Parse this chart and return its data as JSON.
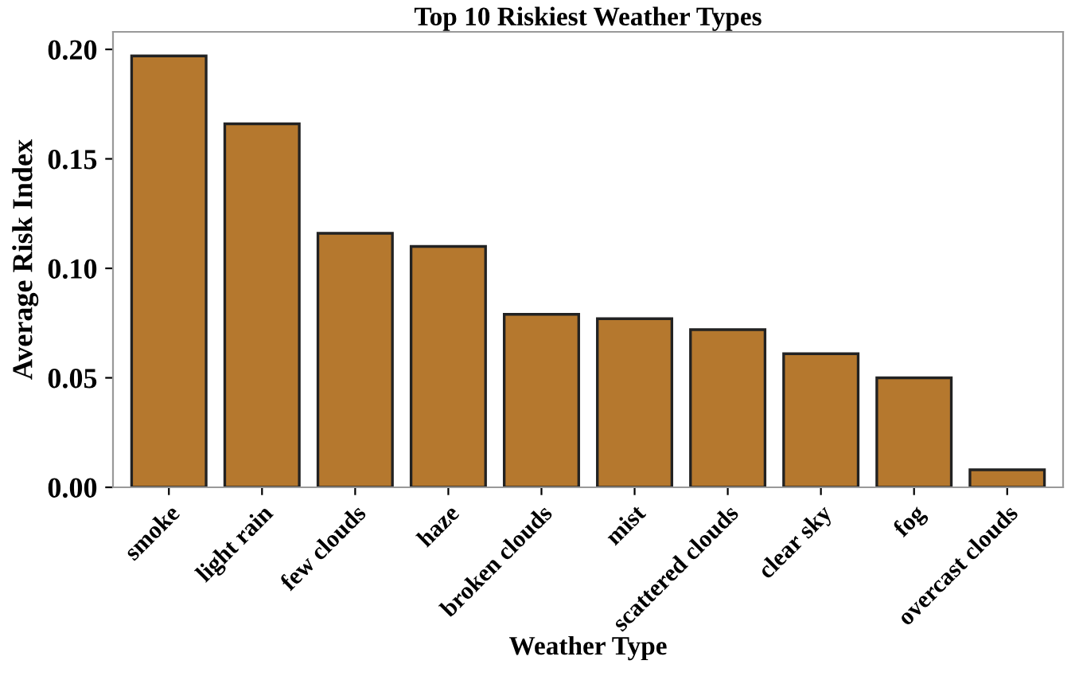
{
  "chart_data": {
    "type": "bar",
    "title": "Top 10 Riskiest Weather Types",
    "xlabel": "Weather Type",
    "ylabel": "Average Risk Index",
    "categories": [
      "smoke",
      "light rain",
      "few clouds",
      "haze",
      "broken clouds",
      "mist",
      "scattered clouds",
      "clear sky",
      "fog",
      "overcast clouds"
    ],
    "values": [
      0.197,
      0.166,
      0.116,
      0.11,
      0.079,
      0.077,
      0.072,
      0.061,
      0.05,
      0.008
    ],
    "color": "#b5782e",
    "ylim": [
      0,
      0.208
    ],
    "yticks": [
      {
        "value": 0,
        "label": "0.00"
      },
      {
        "value": 0.05,
        "label": "0.05"
      },
      {
        "value": 0.1,
        "label": "0.10"
      },
      {
        "value": 0.15,
        "label": "0.15"
      },
      {
        "value": 0.2,
        "label": "0.20"
      }
    ],
    "grid": false
  }
}
